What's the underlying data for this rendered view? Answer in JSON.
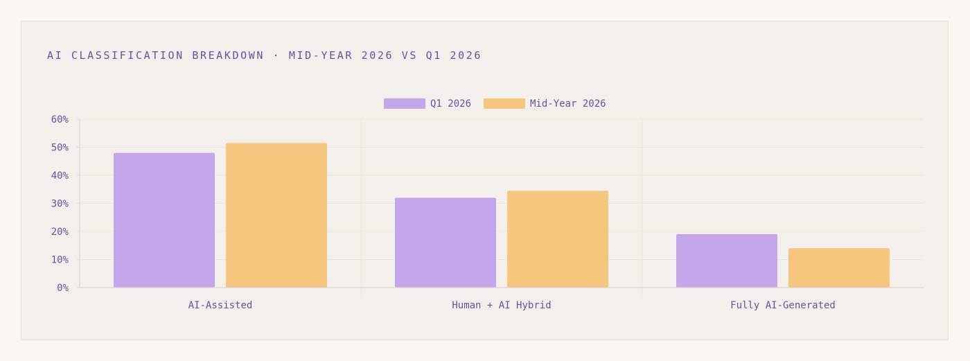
{
  "title": "AI CLASSIFICATION BREAKDOWN · MID-YEAR 2026 VS Q1 2026",
  "chart_data": {
    "type": "bar",
    "categories": [
      "AI-Assisted",
      "Human + AI Hybrid",
      "Fully AI-Generated"
    ],
    "series": [
      {
        "name": "Q1 2026",
        "values": [
          48,
          32,
          19
        ],
        "color": "#c4a7ea"
      },
      {
        "name": "Mid-Year 2026",
        "values": [
          51.5,
          34.5,
          14
        ],
        "color": "#f4c67e"
      }
    ],
    "yticks": [
      0,
      10,
      20,
      30,
      40,
      50,
      60
    ],
    "ytick_labels": [
      "0%",
      "10%",
      "20%",
      "30%",
      "40%",
      "50%",
      "60%"
    ],
    "ylim": [
      0,
      60
    ],
    "grid": true,
    "legend_position": "top-center",
    "text_color": "#6a4fa0"
  }
}
